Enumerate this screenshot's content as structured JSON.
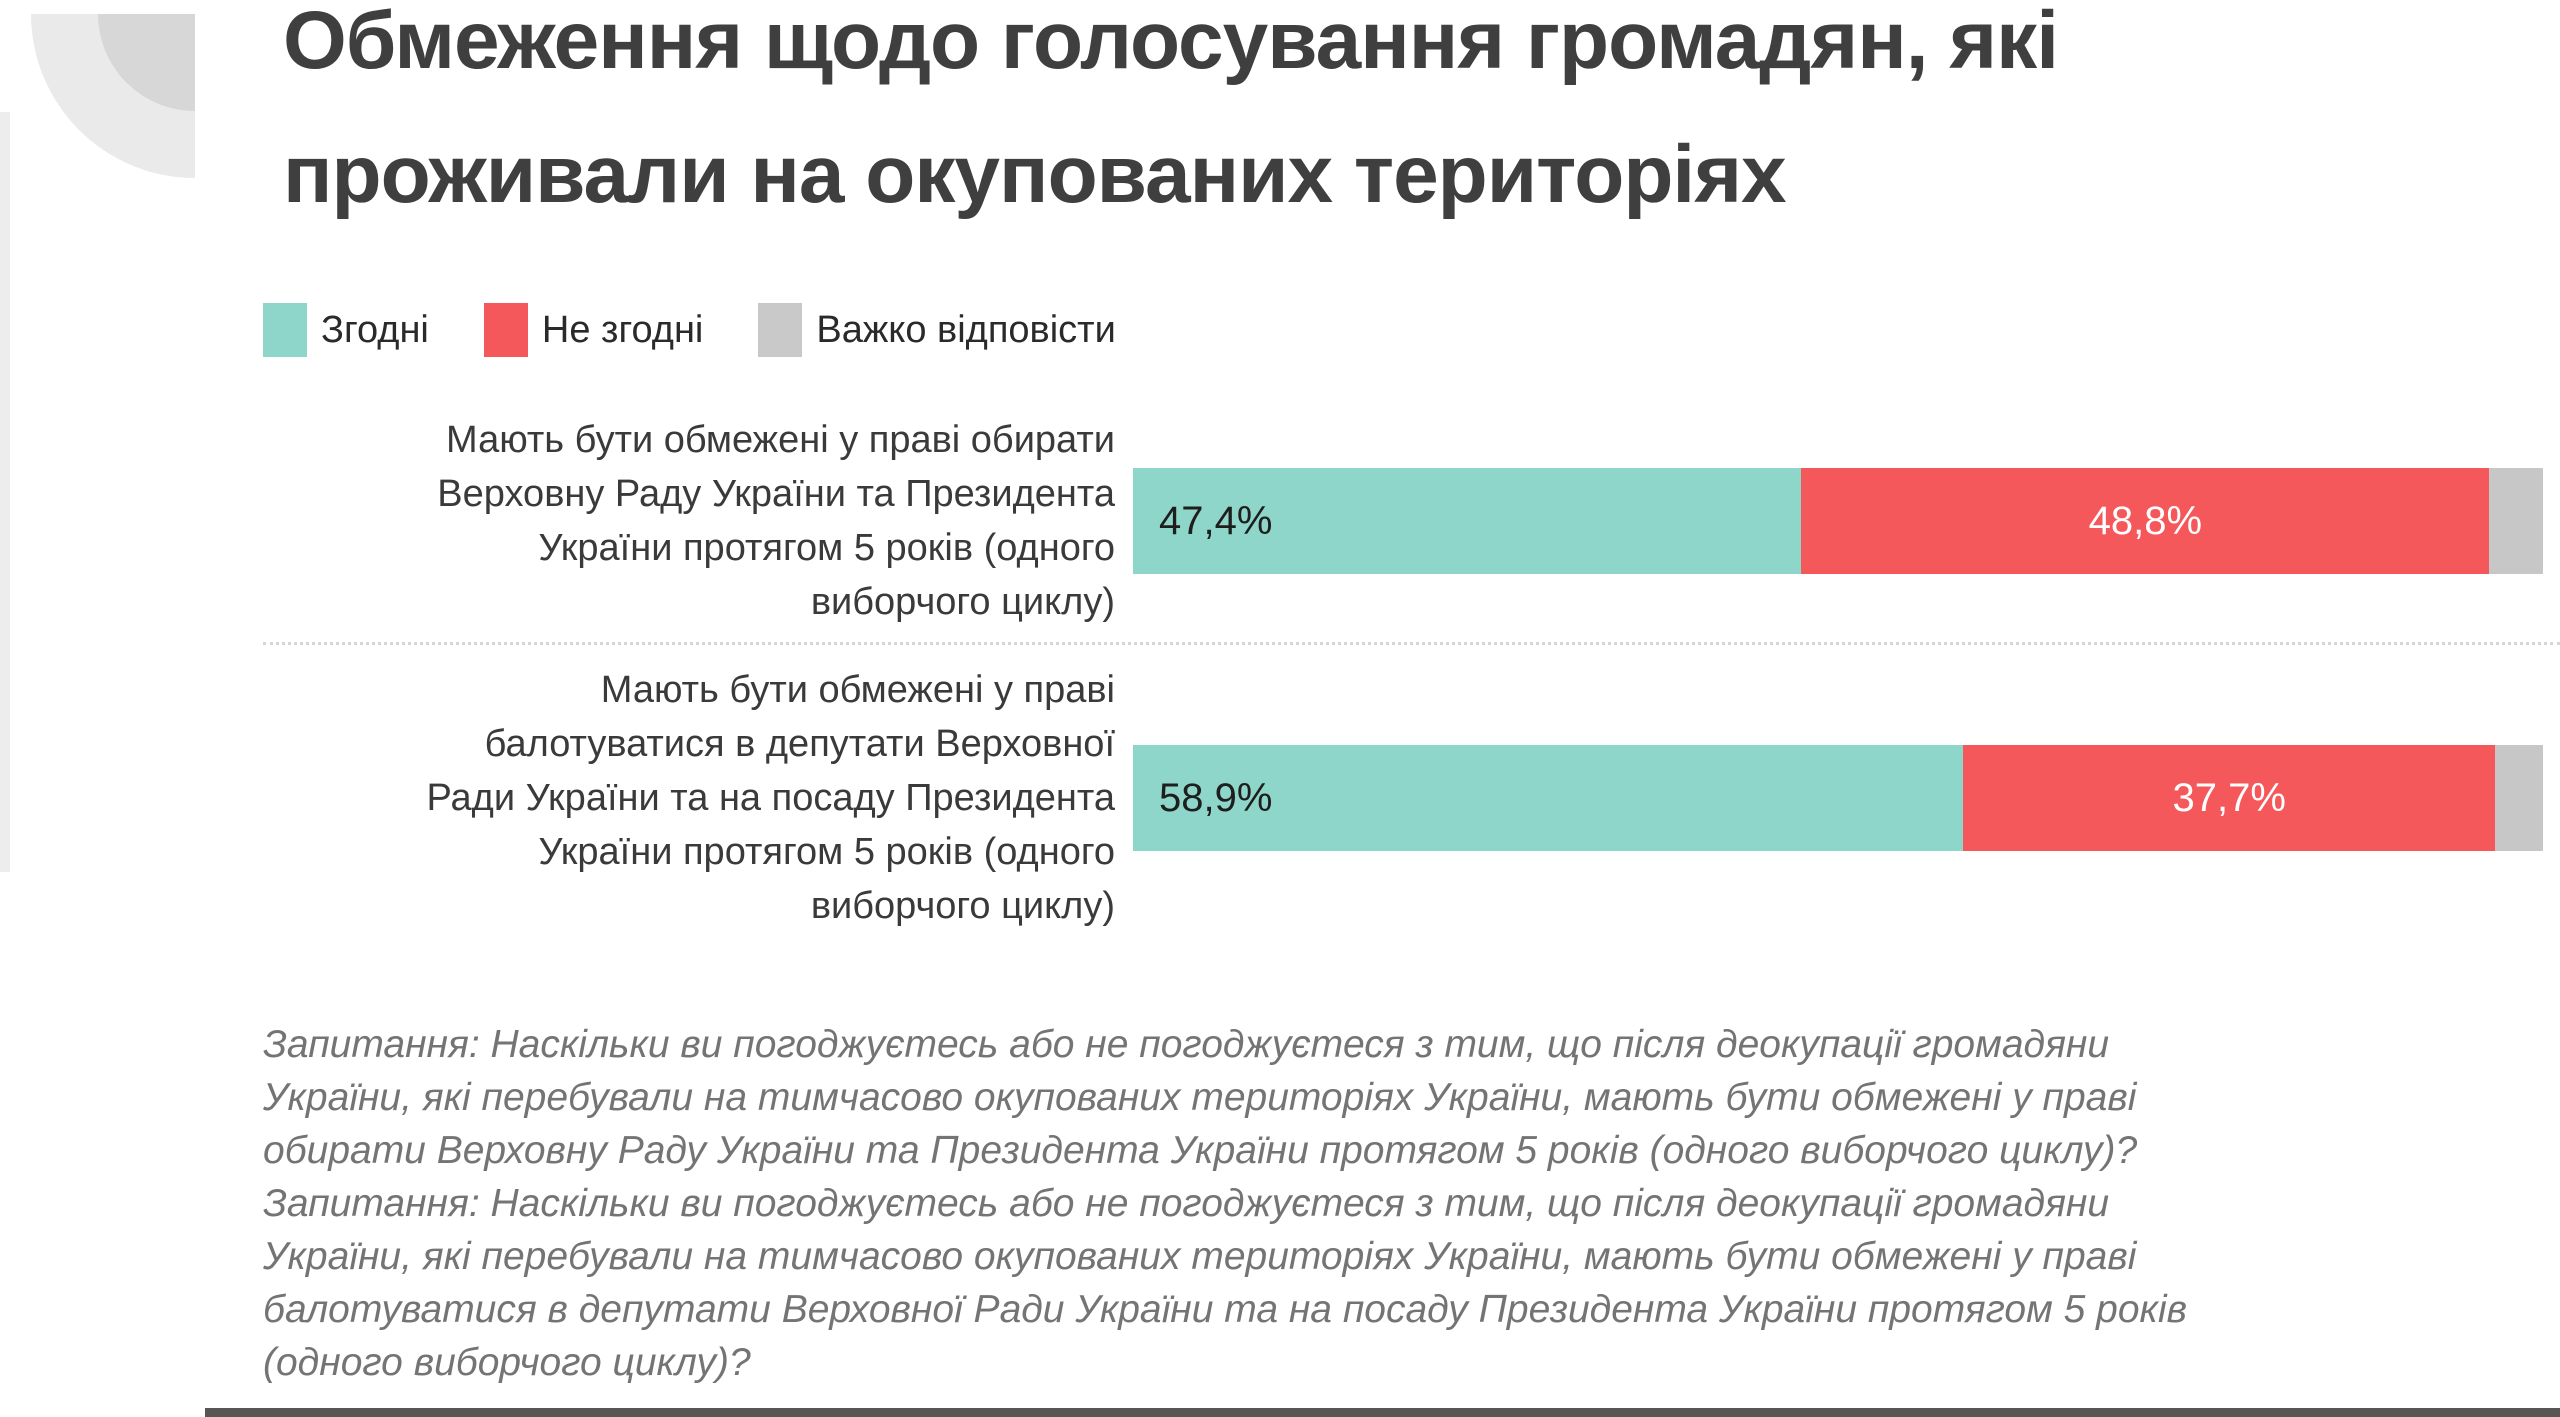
{
  "title": {
    "lines": [
      "Обмеження щодо голосування громадян, які",
      "проживали на окупованих територіях"
    ]
  },
  "legend": {
    "items": [
      {
        "key": "agree",
        "label": "Згодні",
        "color": "#8ed6ca"
      },
      {
        "key": "disagree",
        "label": "Не згодні",
        "color": "#f4585a"
      },
      {
        "key": "hard-to-answer",
        "label": "Важко відповісти",
        "color": "#c9c9c9"
      }
    ]
  },
  "chart_data": {
    "type": "bar",
    "orientation": "horizontal",
    "stacked": true,
    "unit": "percent",
    "xlim": [
      0,
      100
    ],
    "grid": false,
    "legend_position": "top",
    "title": "Обмеження щодо голосування громадян, які проживали на окупованих територіях",
    "categories": [
      {
        "lines": [
          "Мають бути обмежені у праві обирати",
          "Верховну Раду України та Президента",
          "України протягом 5 років (одного",
          "виборчого циклу)"
        ]
      },
      {
        "lines": [
          "Мають бути обмежені у праві",
          "балотуватися в депутати Верховної",
          "Ради України та на посаду Президента",
          "України протягом 5 років (одного",
          "виборчого циклу)"
        ]
      }
    ],
    "series": [
      {
        "key": "agree",
        "name": "Згодні",
        "color": "#8ed6ca",
        "values": [
          47.4,
          58.9
        ],
        "labels": [
          "47,4%",
          "58,9%"
        ],
        "label_color": "#1e1e1e"
      },
      {
        "key": "disagree",
        "name": "Не згодні",
        "color": "#f4585a",
        "values": [
          48.8,
          37.7
        ],
        "labels": [
          "48,8%",
          "37,7%"
        ],
        "label_color": "#ffffff"
      },
      {
        "key": "hard-to-answer",
        "name": "Важко відповісти",
        "color": "#c7c7c7",
        "values": [
          3.8,
          3.4
        ],
        "labels": [
          "",
          ""
        ],
        "label_color": "#1e1e1e"
      }
    ]
  },
  "footnote": {
    "lines": [
      "Запитання: Наскільки ви погоджуєтесь або не погоджуєтеся з тим, що після деокупації громадяни",
      "України, які перебували на тимчасово окупованих територіях України, мають бути обмежені у праві",
      "обирати Верховну Раду України та Президента України протягом 5 років (одного виборчого циклу)?",
      "Запитання: Наскільки ви погоджуєтесь або не погоджуєтеся з тим, що після деокупації громадяни",
      "України, які перебували на тимчасово окупованих територіях України, мають бути обмежені у праві",
      "балотуватися в депутати Верховної Ради України та на посаду Президента України протягом 5 років",
      "(одного виборчого циклу)?"
    ]
  }
}
